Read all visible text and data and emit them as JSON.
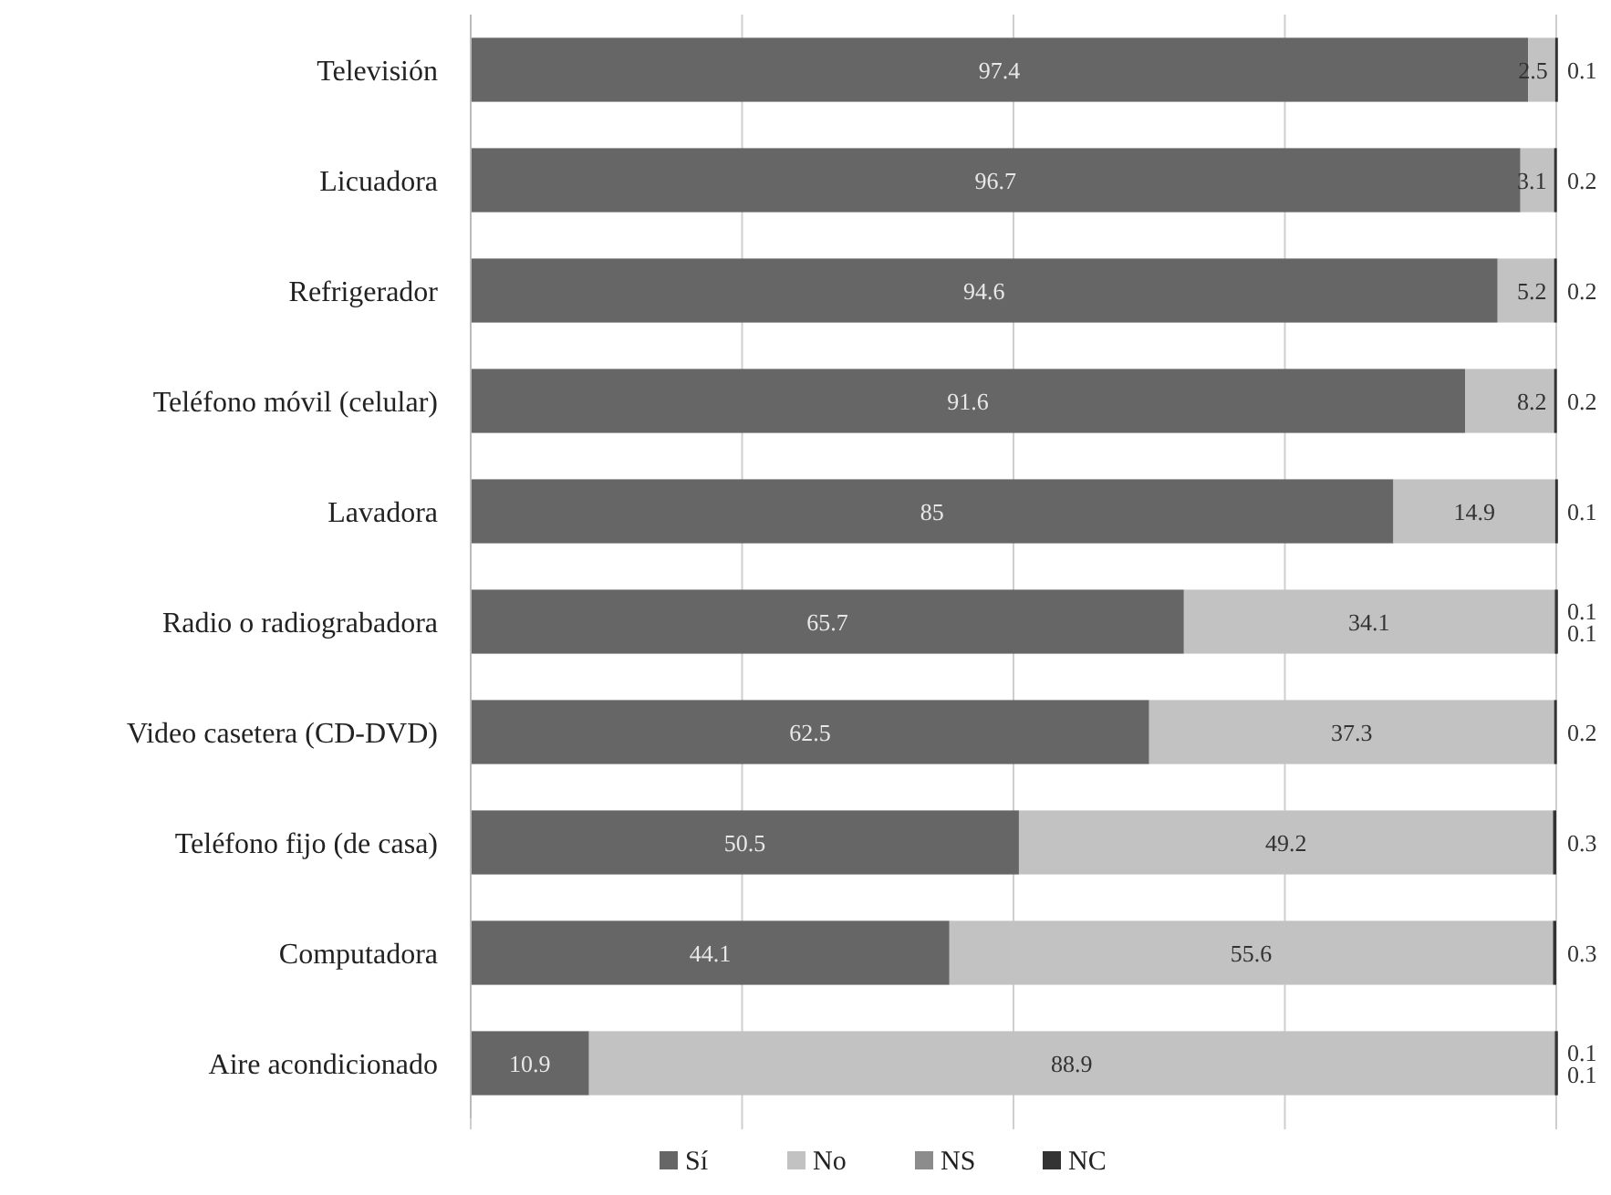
{
  "chart_data": {
    "type": "bar",
    "orientation": "horizontal",
    "stacked": true,
    "categories": [
      "Televisión",
      "Licuadora",
      "Refrigerador",
      "Teléfono móvil (celular)",
      "Lavadora",
      "Radio o radiograbadora",
      "Video casetera (CD-DVD)",
      "Teléfono fijo (de casa)",
      "Computadora",
      "Aire acondicionado"
    ],
    "series": [
      {
        "name": "Sí",
        "color": "#666666",
        "values": [
          97.4,
          96.7,
          94.6,
          91.6,
          85,
          65.7,
          62.5,
          50.5,
          44.1,
          10.9
        ]
      },
      {
        "name": "No",
        "color": "#c2c2c2",
        "values": [
          2.5,
          3.1,
          5.2,
          8.2,
          14.9,
          34.1,
          37.3,
          49.2,
          55.6,
          88.9
        ]
      },
      {
        "name": "NS",
        "color": "#8c8c8c",
        "values": [
          null,
          null,
          null,
          null,
          null,
          0.1,
          null,
          null,
          null,
          0.1
        ]
      },
      {
        "name": "NC",
        "color": "#333333",
        "values": [
          0.1,
          0.2,
          0.2,
          0.2,
          0.1,
          0.1,
          0.2,
          0.3,
          0.3,
          0.1
        ]
      }
    ],
    "xlim": [
      0,
      100
    ],
    "xticks": [
      {
        "value": 0,
        "label": null
      },
      {
        "value": 25,
        "label": null
      },
      {
        "value": 50,
        "label": null
      },
      {
        "value": 75,
        "label": null
      },
      {
        "value": 100,
        "label": null
      }
    ],
    "tick_labels": "y",
    "grid": "x",
    "legend": "bottom",
    "data_labels": true
  }
}
